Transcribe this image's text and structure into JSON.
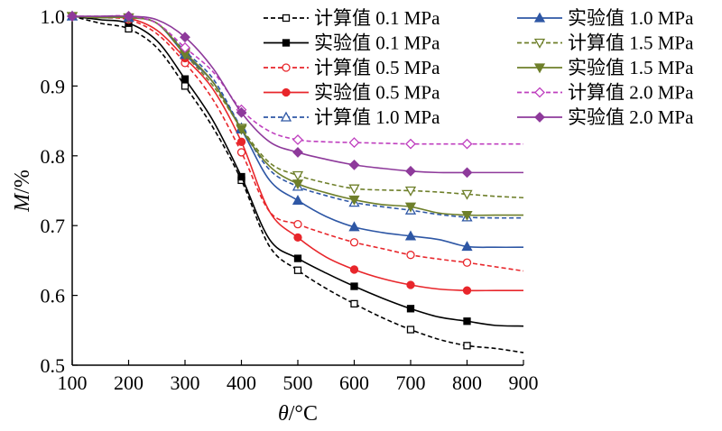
{
  "chart_data": {
    "type": "line",
    "xlabel": {
      "var": "θ",
      "unit": "/°C"
    },
    "ylabel": {
      "var": "M",
      "unit": "/%"
    },
    "xlim": [
      100,
      900
    ],
    "ylim": [
      0.5,
      1.0
    ],
    "xticks": [
      "100",
      "200",
      "300",
      "400",
      "500",
      "600",
      "700",
      "800",
      "900"
    ],
    "yticks": [
      "0.5",
      "0.6",
      "0.7",
      "0.8",
      "0.9",
      "1.0"
    ],
    "legend_position": "top-right",
    "grid": false,
    "series": [
      {
        "name": "计算值 0.1 MPa",
        "color": "#000000",
        "dashed": true,
        "marker": "square",
        "filled": false,
        "x": [
          100,
          150,
          200,
          250,
          300,
          350,
          400,
          450,
          500,
          550,
          600,
          650,
          700,
          750,
          800,
          850,
          900
        ],
        "y": [
          1.0,
          0.99,
          0.982,
          0.955,
          0.9,
          0.84,
          0.765,
          0.67,
          0.636,
          0.61,
          0.588,
          0.568,
          0.551,
          0.537,
          0.528,
          0.524,
          0.518
        ],
        "marker_x": [
          100,
          200,
          300,
          400,
          500,
          600,
          700,
          800
        ]
      },
      {
        "name": "实验值 0.1 MPa",
        "color": "#000000",
        "dashed": false,
        "marker": "square",
        "filled": true,
        "x": [
          100,
          150,
          200,
          250,
          300,
          350,
          400,
          450,
          500,
          550,
          600,
          650,
          700,
          750,
          800,
          850,
          900
        ],
        "y": [
          1.0,
          0.995,
          0.99,
          0.965,
          0.91,
          0.85,
          0.77,
          0.68,
          0.653,
          0.632,
          0.613,
          0.596,
          0.581,
          0.569,
          0.563,
          0.557,
          0.556
        ],
        "marker_x": [
          100,
          200,
          300,
          400,
          500,
          600,
          700,
          800
        ]
      },
      {
        "name": "计算值 0.5 MPa",
        "color": "#e8262b",
        "dashed": true,
        "marker": "circle",
        "filled": false,
        "x": [
          100,
          150,
          200,
          250,
          300,
          350,
          400,
          450,
          500,
          550,
          600,
          650,
          700,
          750,
          800,
          850,
          900
        ],
        "y": [
          1.0,
          0.998,
          0.995,
          0.975,
          0.933,
          0.88,
          0.805,
          0.72,
          0.702,
          0.688,
          0.676,
          0.667,
          0.658,
          0.652,
          0.647,
          0.641,
          0.635
        ],
        "marker_x": [
          100,
          200,
          300,
          400,
          500,
          600,
          700,
          800
        ]
      },
      {
        "name": "实验值 0.5 MPa",
        "color": "#e8262b",
        "dashed": false,
        "marker": "circle",
        "filled": true,
        "x": [
          100,
          150,
          200,
          250,
          300,
          350,
          400,
          450,
          500,
          550,
          600,
          650,
          700,
          750,
          800,
          850,
          900
        ],
        "y": [
          1.0,
          0.998,
          0.997,
          0.98,
          0.94,
          0.895,
          0.82,
          0.72,
          0.683,
          0.655,
          0.637,
          0.624,
          0.615,
          0.609,
          0.607,
          0.607,
          0.607
        ],
        "marker_x": [
          100,
          200,
          300,
          400,
          500,
          600,
          700,
          800
        ]
      },
      {
        "name": "计算值 1.0 MPa",
        "color": "#2e57a5",
        "dashed": true,
        "marker": "triangle",
        "filled": false,
        "x": [
          100,
          150,
          200,
          250,
          300,
          350,
          400,
          450,
          500,
          550,
          600,
          650,
          700,
          750,
          800,
          850,
          900
        ],
        "y": [
          1.0,
          0.998,
          0.998,
          0.99,
          0.95,
          0.91,
          0.84,
          0.78,
          0.756,
          0.743,
          0.733,
          0.727,
          0.722,
          0.716,
          0.712,
          0.711,
          0.711
        ],
        "marker_x": [
          100,
          200,
          300,
          400,
          500,
          600,
          700,
          800
        ]
      },
      {
        "name": "实验值 1.0 MPa",
        "color": "#2e57a5",
        "dashed": false,
        "marker": "triangle",
        "filled": true,
        "x": [
          100,
          150,
          200,
          250,
          300,
          350,
          400,
          450,
          500,
          550,
          600,
          650,
          700,
          750,
          800,
          850,
          900
        ],
        "y": [
          1.0,
          0.998,
          0.998,
          0.99,
          0.945,
          0.905,
          0.838,
          0.765,
          0.736,
          0.713,
          0.698,
          0.69,
          0.685,
          0.68,
          0.67,
          0.669,
          0.669
        ],
        "marker_x": [
          100,
          200,
          300,
          400,
          500,
          600,
          700,
          800
        ]
      },
      {
        "name": "计算值 1.5 MPa",
        "color": "#6e7f2a",
        "dashed": true,
        "marker": "triangle-down",
        "filled": false,
        "x": [
          100,
          150,
          200,
          250,
          300,
          350,
          400,
          450,
          500,
          550,
          600,
          650,
          700,
          750,
          800,
          850,
          900
        ],
        "y": [
          1.0,
          0.998,
          0.998,
          0.99,
          0.945,
          0.9,
          0.84,
          0.79,
          0.772,
          0.761,
          0.753,
          0.751,
          0.75,
          0.748,
          0.745,
          0.742,
          0.74
        ],
        "marker_x": [
          100,
          200,
          300,
          400,
          500,
          600,
          700,
          800
        ]
      },
      {
        "name": "实验值 1.5 MPa",
        "color": "#6e7f2a",
        "dashed": false,
        "marker": "triangle-down",
        "filled": true,
        "x": [
          100,
          150,
          200,
          250,
          300,
          350,
          400,
          450,
          500,
          550,
          600,
          650,
          700,
          750,
          800,
          850,
          900
        ],
        "y": [
          1.0,
          0.998,
          0.998,
          0.99,
          0.948,
          0.905,
          0.838,
          0.785,
          0.76,
          0.747,
          0.737,
          0.73,
          0.727,
          0.718,
          0.715,
          0.715,
          0.715
        ],
        "marker_x": [
          100,
          200,
          300,
          400,
          500,
          600,
          700,
          800
        ]
      },
      {
        "name": "计算值 2.0 MPa",
        "color": "#bf3fbf",
        "dashed": true,
        "marker": "diamond",
        "filled": false,
        "x": [
          100,
          150,
          200,
          250,
          300,
          350,
          400,
          450,
          500,
          550,
          600,
          650,
          700,
          750,
          800,
          850,
          900
        ],
        "y": [
          1.0,
          1.0,
          1.0,
          0.99,
          0.955,
          0.92,
          0.866,
          0.835,
          0.823,
          0.82,
          0.819,
          0.818,
          0.817,
          0.817,
          0.817,
          0.817,
          0.817
        ],
        "marker_x": [
          100,
          200,
          300,
          400,
          500,
          600,
          700,
          800
        ]
      },
      {
        "name": "实验值 2.0 MPa",
        "color": "#8e3a9b",
        "dashed": false,
        "marker": "diamond",
        "filled": true,
        "x": [
          100,
          150,
          200,
          250,
          300,
          350,
          400,
          450,
          500,
          550,
          600,
          650,
          700,
          750,
          800,
          850,
          900
        ],
        "y": [
          1.0,
          1.0,
          1.0,
          0.995,
          0.97,
          0.925,
          0.862,
          0.82,
          0.805,
          0.795,
          0.787,
          0.782,
          0.778,
          0.776,
          0.776,
          0.776,
          0.776
        ],
        "marker_x": [
          100,
          200,
          300,
          400,
          500,
          600,
          700,
          800
        ]
      }
    ]
  }
}
